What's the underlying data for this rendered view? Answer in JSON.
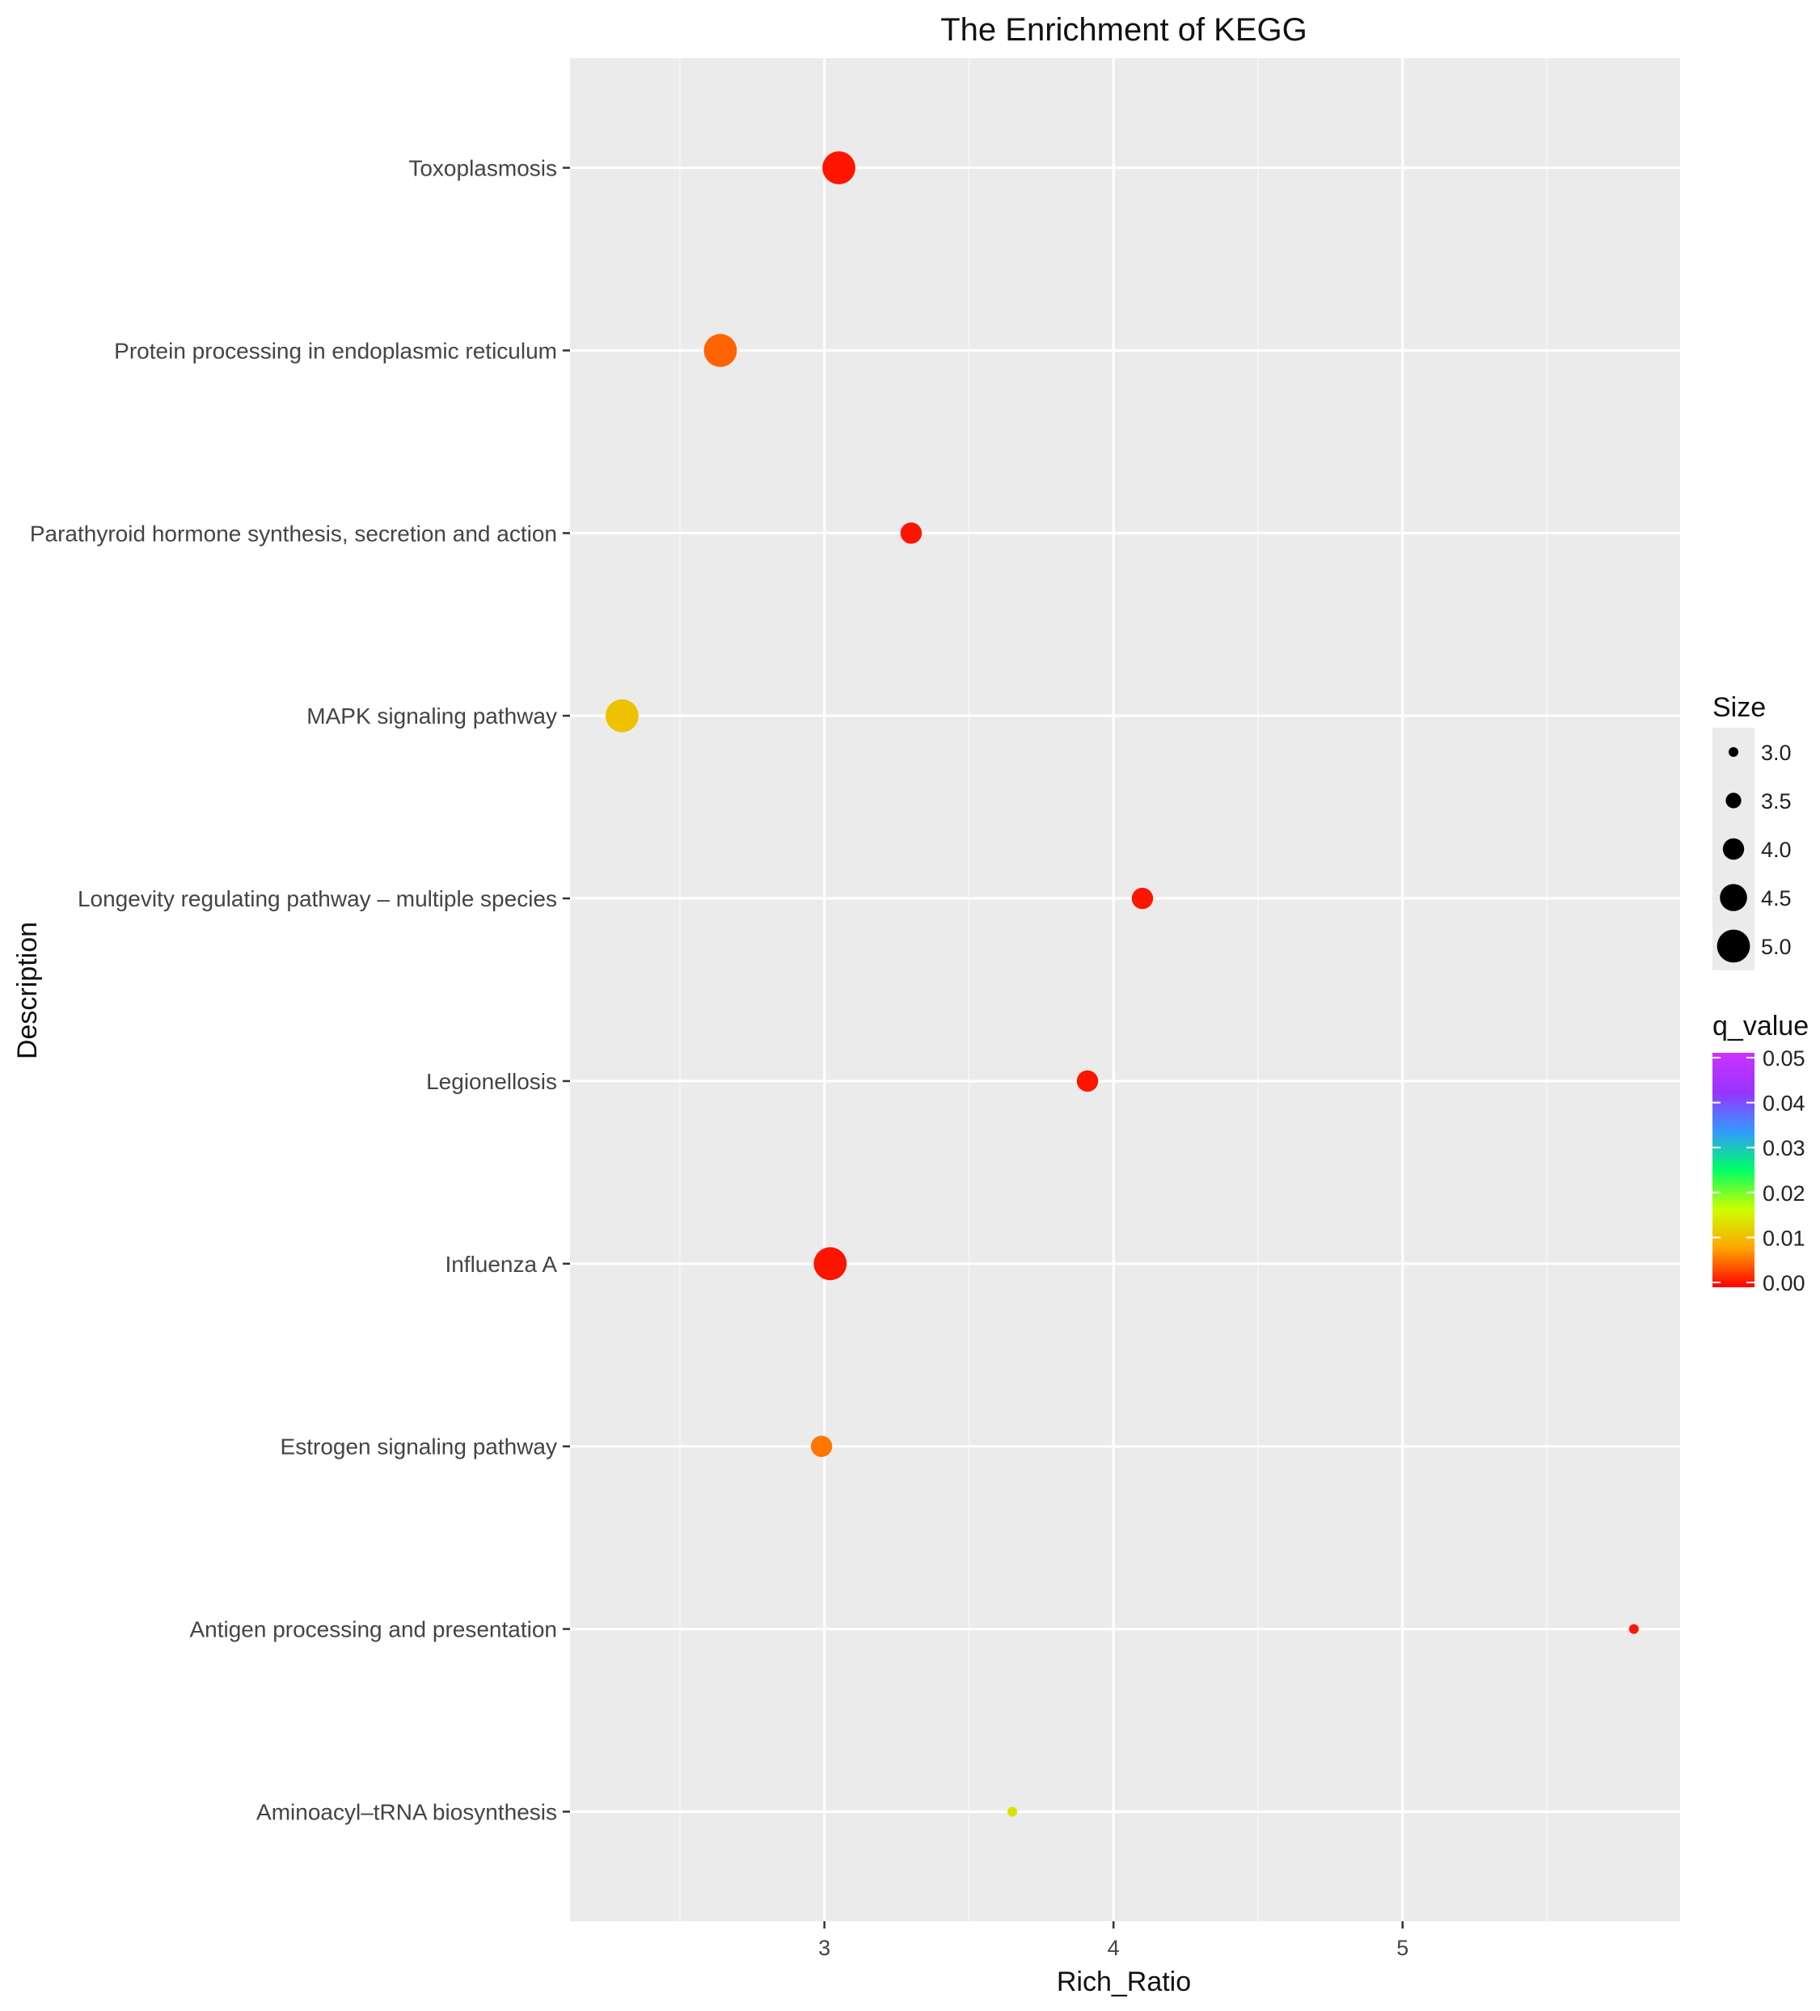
{
  "chart_data": {
    "type": "scatter",
    "title": "The Enrichment of KEGG",
    "xlabel": "Rich_Ratio",
    "ylabel": "Description",
    "xlim": [
      2.12,
      5.96
    ],
    "x_ticks": [
      3,
      4,
      5
    ],
    "x_tick_labels": [
      "3",
      "4",
      "5"
    ],
    "grid": true,
    "categories": [
      "Toxoplasmosis",
      "Protein processing in endoplasmic reticulum",
      "Parathyroid hormone synthesis, secretion and action",
      "MAPK signaling pathway",
      "Longevity regulating pathway – multiple species",
      "Legionellosis",
      "Influenza A",
      "Estrogen signaling pathway",
      "Antigen processing and presentation",
      "Aminoacyl–tRNA biosynthesis"
    ],
    "points": [
      {
        "category": "Toxoplasmosis",
        "x": 3.05,
        "size": 5.0,
        "q_value": 0.001
      },
      {
        "category": "Protein processing in endoplasmic reticulum",
        "x": 2.64,
        "size": 5.0,
        "q_value": 0.005
      },
      {
        "category": "Parathyroid hormone synthesis, secretion and action",
        "x": 3.3,
        "size": 4.0,
        "q_value": 0.001
      },
      {
        "category": "MAPK signaling pathway",
        "x": 2.3,
        "size": 5.0,
        "q_value": 0.011
      },
      {
        "category": "Longevity regulating pathway – multiple species",
        "x": 4.1,
        "size": 4.0,
        "q_value": 0.001
      },
      {
        "category": "Legionellosis",
        "x": 3.91,
        "size": 4.0,
        "q_value": 0.001
      },
      {
        "category": "Influenza A",
        "x": 3.02,
        "size": 5.0,
        "q_value": 0.001
      },
      {
        "category": "Estrogen signaling pathway",
        "x": 2.99,
        "size": 4.0,
        "q_value": 0.006
      },
      {
        "category": "Antigen processing and presentation",
        "x": 5.8,
        "size": 3.0,
        "q_value": 0.001
      },
      {
        "category": "Aminoacyl–tRNA biosynthesis",
        "x": 3.65,
        "size": 3.0,
        "q_value": 0.014
      }
    ],
    "legend_size": {
      "title": "Size",
      "values": [
        3.0,
        3.5,
        4.0,
        4.5,
        5.0
      ],
      "labels": [
        "3.0",
        "3.5",
        "4.0",
        "4.5",
        "5.0"
      ]
    },
    "legend_color": {
      "title": "q_value",
      "range": [
        0.0,
        0.05
      ],
      "labels": [
        "0.05",
        "0.04",
        "0.03",
        "0.02",
        "0.01",
        "0.00"
      ],
      "colors": [
        "#ff0000",
        "#ffa500",
        "#ccff00",
        "#00ff66",
        "#3399ff",
        "#9933ff",
        "#cc33ff"
      ]
    },
    "legend_placement": "right"
  },
  "colors": {
    "panel_background": "#ebebeb",
    "grid": "#ffffff"
  }
}
